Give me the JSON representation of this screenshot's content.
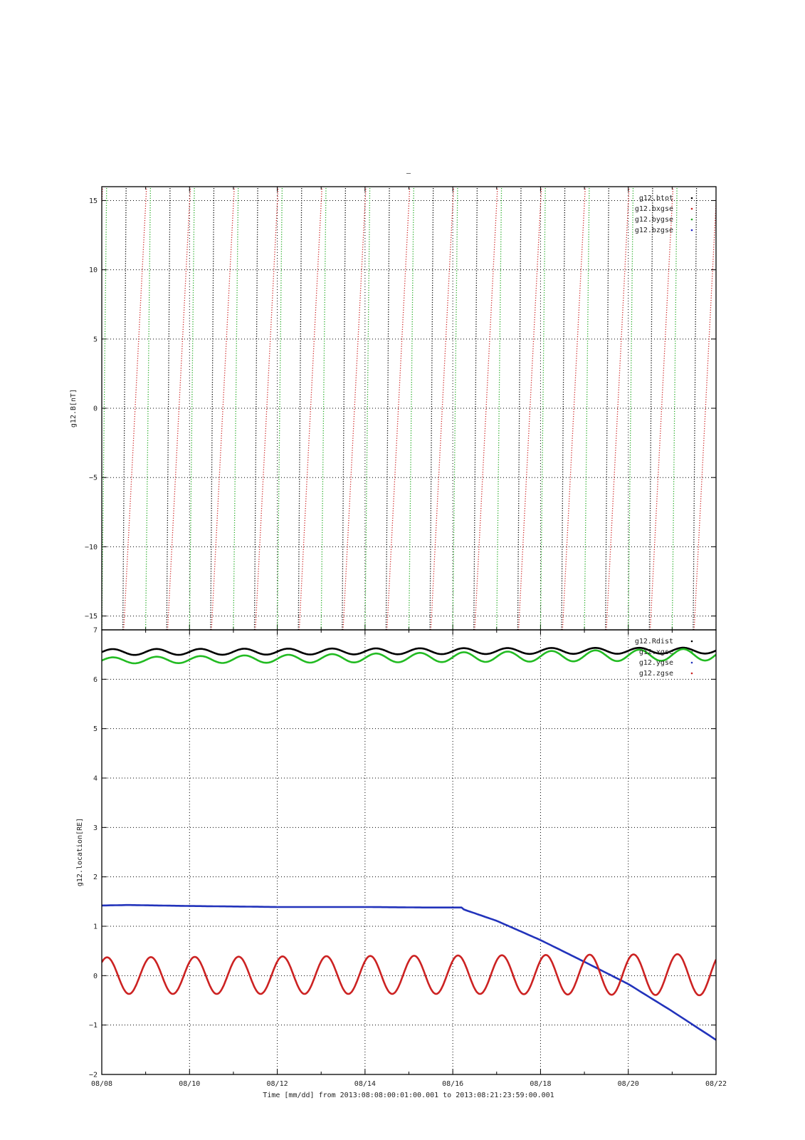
{
  "figure": {
    "title": "–",
    "xlabel": "Time [mm/dd]  from 2013:08:08:00:01:00.001  to  2013:08:21:23:59:00.001",
    "x_tick_labels": [
      "08/08",
      "08/10",
      "08/12",
      "08/14",
      "08/16",
      "08/18",
      "08/20",
      "08/22"
    ]
  },
  "chart_data": [
    {
      "type": "line",
      "ylabel": "g12.B[nT]",
      "xlim_days": [
        0,
        14
      ],
      "ylim": [
        -16,
        16
      ],
      "y_ticks": [
        15,
        10,
        5,
        0,
        -5,
        -10,
        -15
      ],
      "y_tick_labels": [
        "15",
        "10",
        "5",
        "0",
        "−5",
        "−10",
        "−15"
      ],
      "grid": true,
      "legend_position": "top-right",
      "legend": [
        "g12.btot",
        "g12.bxgse",
        "g12.bygse",
        "g12.bzgse"
      ],
      "series": [
        {
          "name": "g12.btot",
          "color": "#000000",
          "style": "dotted",
          "sawtooth": {
            "first_crossing_day": 0.48,
            "period_days": 1.0,
            "rise_days": 0.075,
            "values_span": [
              -16,
              16
            ]
          }
        },
        {
          "name": "g12.bxgse",
          "color": "#cc2222",
          "style": "dotted",
          "sawtooth": {
            "first_crossing_day": 0.15,
            "period_days": 1.0,
            "rise_days": 0.52,
            "values_span": [
              -16,
              16
            ],
            "phase_offset_days": 0.35
          }
        },
        {
          "name": "g12.bygse",
          "color": "#22aa22",
          "style": "dotted",
          "sawtooth": {
            "first_crossing_day": 0.0,
            "period_days": 1.0,
            "rise_days": 0.11,
            "values_span": [
              -16,
              16
            ]
          }
        },
        {
          "name": "g12.bzgse",
          "color": "#2222cc",
          "style": "dotted",
          "sawtooth": null
        }
      ]
    },
    {
      "type": "line",
      "ylabel": "g12.location[RE]",
      "xlim_days": [
        0,
        14
      ],
      "ylim": [
        -2,
        7
      ],
      "y_ticks": [
        7,
        6,
        5,
        4,
        3,
        2,
        1,
        0,
        -1,
        -2
      ],
      "y_tick_labels": [
        "7",
        "6",
        "5",
        "4",
        "3",
        "2",
        "1",
        "0",
        "−1",
        "−2"
      ],
      "grid": true,
      "legend_position": "top-right",
      "legend": [
        "g12.Rdist",
        "g12.xgse",
        "g12.ygse",
        "g12.zgse"
      ],
      "series": [
        {
          "name": "g12.Rdist",
          "color": "#000000",
          "x_days": [
            0,
            8.5,
            14
          ],
          "mean": [
            6.55,
            6.57,
            6.58
          ],
          "amplitude": [
            0.06,
            0.06,
            0.06
          ],
          "period_days": 1.0
        },
        {
          "name": "g12.xgse",
          "color": "#22bb22",
          "x_days": [
            0,
            8.5,
            14
          ],
          "mean": [
            6.38,
            6.45,
            6.5
          ],
          "amplitude": [
            0.06,
            0.1,
            0.12
          ],
          "period_days": 1.0
        },
        {
          "name": "g12.ygse",
          "color": "#2233bb",
          "x_days": [
            0,
            0.6,
            2,
            4,
            6,
            7.3,
            8.2,
            8.25,
            9,
            10,
            11,
            12,
            13,
            14
          ],
          "y": [
            1.42,
            1.43,
            1.41,
            1.39,
            1.39,
            1.38,
            1.38,
            1.34,
            1.11,
            0.72,
            0.28,
            -0.17,
            -0.72,
            -1.3
          ]
        },
        {
          "name": "g12.zgse",
          "color": "#cc2222",
          "x_days": [
            0,
            8.5,
            14
          ],
          "mean": [
            0.0,
            0.02,
            0.02
          ],
          "amplitude": [
            0.37,
            0.39,
            0.42
          ],
          "period_days": 1.0,
          "phase_days": -0.13
        }
      ]
    }
  ]
}
